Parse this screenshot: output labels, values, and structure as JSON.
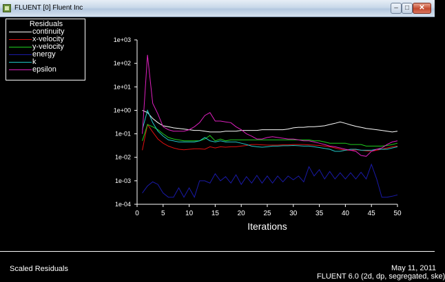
{
  "window": {
    "title": "FLUENT [0] Fluent Inc",
    "minimize_glyph": "–",
    "maximize_glyph": "□",
    "close_glyph": "✕"
  },
  "legend": {
    "title": "Residuals",
    "items": [
      {
        "label": "continuity",
        "color": "#ffffff"
      },
      {
        "label": "x-velocity",
        "color": "#e01010"
      },
      {
        "label": "y-velocity",
        "color": "#20d020"
      },
      {
        "label": "energy",
        "color": "#1a1aa8"
      },
      {
        "label": "k",
        "color": "#20c8c8"
      },
      {
        "label": "epsilon",
        "color": "#e020c0"
      }
    ]
  },
  "status": {
    "left_label": "Scaled Residuals",
    "date": "May 11, 2011",
    "version": "FLUENT 6.0 (2d, dp, segregated, ske)"
  },
  "chart_data": {
    "type": "line",
    "xlabel": "Iterations",
    "ylabel": "",
    "yscale": "log",
    "xlim": [
      0,
      50
    ],
    "ylim": [
      0.0001,
      1000
    ],
    "x_ticks": [
      0,
      5,
      10,
      15,
      20,
      25,
      30,
      35,
      40,
      45,
      50
    ],
    "y_ticks": [
      "1e-04",
      "1e-03",
      "1e-02",
      "1e-01",
      "1e+00",
      "1e+01",
      "1e+02",
      "1e+03"
    ],
    "x": [
      1,
      2,
      3,
      4,
      5,
      6,
      7,
      8,
      9,
      10,
      11,
      12,
      13,
      14,
      15,
      16,
      17,
      18,
      19,
      20,
      21,
      22,
      23,
      24,
      25,
      26,
      27,
      28,
      29,
      30,
      31,
      32,
      33,
      34,
      35,
      36,
      37,
      38,
      39,
      40,
      41,
      42,
      43,
      44,
      45,
      46,
      47,
      48,
      49,
      50
    ],
    "series": [
      {
        "name": "continuity",
        "color": "#ffffff",
        "values": [
          1.0,
          0.8,
          0.45,
          0.3,
          0.22,
          0.2,
          0.18,
          0.17,
          0.16,
          0.15,
          0.14,
          0.14,
          0.13,
          0.12,
          0.12,
          0.12,
          0.13,
          0.13,
          0.13,
          0.14,
          0.14,
          0.14,
          0.14,
          0.15,
          0.15,
          0.15,
          0.15,
          0.15,
          0.16,
          0.18,
          0.19,
          0.19,
          0.2,
          0.2,
          0.21,
          0.22,
          0.25,
          0.28,
          0.32,
          0.28,
          0.24,
          0.21,
          0.19,
          0.17,
          0.16,
          0.15,
          0.14,
          0.13,
          0.12,
          0.13
        ]
      },
      {
        "name": "x-velocity",
        "color": "#e01010",
        "values": [
          0.02,
          0.25,
          0.12,
          0.06,
          0.04,
          0.03,
          0.025,
          0.022,
          0.021,
          0.022,
          0.023,
          0.023,
          0.022,
          0.028,
          0.025,
          0.028,
          0.027,
          0.028,
          0.028,
          0.03,
          0.032,
          0.035,
          0.035,
          0.034,
          0.033,
          0.033,
          0.033,
          0.034,
          0.034,
          0.035,
          0.035,
          0.035,
          0.034,
          0.033,
          0.032,
          0.03,
          0.028,
          0.025,
          0.022,
          0.02,
          0.02,
          0.021,
          0.02,
          0.019,
          0.018,
          0.02,
          0.022,
          0.025,
          0.028,
          0.03
        ]
      },
      {
        "name": "y-velocity",
        "color": "#20d020",
        "values": [
          0.05,
          0.25,
          0.2,
          0.15,
          0.1,
          0.07,
          0.06,
          0.055,
          0.05,
          0.05,
          0.05,
          0.05,
          0.06,
          0.085,
          0.05,
          0.06,
          0.05,
          0.055,
          0.055,
          0.055,
          0.055,
          0.055,
          0.055,
          0.055,
          0.055,
          0.055,
          0.055,
          0.055,
          0.055,
          0.055,
          0.055,
          0.055,
          0.055,
          0.05,
          0.05,
          0.045,
          0.04,
          0.04,
          0.04,
          0.04,
          0.035,
          0.035,
          0.035,
          0.03,
          0.03,
          0.03,
          0.03,
          0.032,
          0.035,
          0.04
        ]
      },
      {
        "name": "energy",
        "color": "#1a1aa8",
        "values": [
          0.0003,
          0.0006,
          0.0009,
          0.0007,
          0.0003,
          0.0002,
          0.0002,
          0.0005,
          0.0002,
          0.0005,
          0.0002,
          0.001,
          0.001,
          0.0008,
          0.002,
          0.001,
          0.0015,
          0.0008,
          0.0018,
          0.0007,
          0.0015,
          0.0008,
          0.0017,
          0.0008,
          0.0016,
          0.0008,
          0.0016,
          0.0009,
          0.0016,
          0.0011,
          0.0016,
          0.0009,
          0.004,
          0.0016,
          0.003,
          0.0012,
          0.0025,
          0.0012,
          0.0022,
          0.0012,
          0.0022,
          0.0012,
          0.0023,
          0.0012,
          0.005,
          0.0012,
          0.0002,
          0.0002,
          0.00022,
          0.00025
        ]
      },
      {
        "name": "k",
        "color": "#20c8c8",
        "values": [
          0.15,
          1.0,
          0.3,
          0.13,
          0.08,
          0.055,
          0.05,
          0.045,
          0.045,
          0.045,
          0.045,
          0.05,
          0.07,
          0.05,
          0.045,
          0.05,
          0.045,
          0.045,
          0.045,
          0.04,
          0.035,
          0.03,
          0.028,
          0.027,
          0.028,
          0.03,
          0.03,
          0.031,
          0.031,
          0.032,
          0.031,
          0.03,
          0.03,
          0.028,
          0.026,
          0.024,
          0.022,
          0.018,
          0.018,
          0.02,
          0.022,
          0.022,
          0.02,
          0.02,
          0.02,
          0.022,
          0.022,
          0.022,
          0.025,
          0.028
        ]
      },
      {
        "name": "epsilon",
        "color": "#e020c0",
        "values": [
          0.1,
          230,
          2.0,
          0.7,
          0.2,
          0.15,
          0.13,
          0.13,
          0.13,
          0.15,
          0.2,
          0.3,
          0.6,
          0.8,
          0.35,
          0.35,
          0.32,
          0.3,
          0.2,
          0.15,
          0.1,
          0.08,
          0.06,
          0.06,
          0.07,
          0.075,
          0.07,
          0.065,
          0.06,
          0.06,
          0.055,
          0.05,
          0.05,
          0.045,
          0.04,
          0.035,
          0.03,
          0.028,
          0.025,
          0.022,
          0.02,
          0.018,
          0.012,
          0.011,
          0.018,
          0.022,
          0.025,
          0.035,
          0.045,
          0.05
        ]
      }
    ]
  }
}
